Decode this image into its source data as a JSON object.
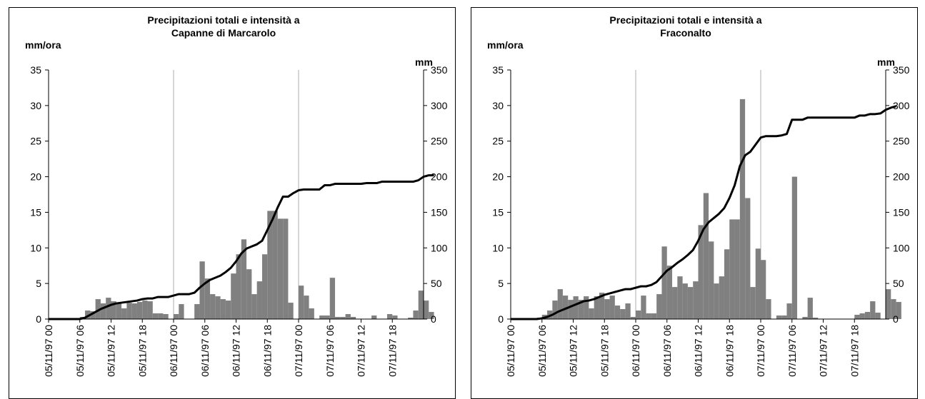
{
  "chart_data": [
    {
      "type": "bar",
      "title": [
        "Precipitazioni totali e intensità a",
        "Capanne di Marcarolo"
      ],
      "ylabel_left": "mm/ora",
      "ylabel_right": "mm",
      "ylim_left": [
        0,
        35
      ],
      "ylim_right": [
        0,
        350
      ],
      "yticks_left": [
        "0",
        "5",
        "10",
        "15",
        "20",
        "25",
        "30",
        "35"
      ],
      "yticks_right": [
        "0",
        "50",
        "100",
        "150",
        "200",
        "250",
        "300",
        "350"
      ],
      "x_tick_labels": [
        "05/11/97 00",
        "05/11/97 06",
        "05/11/97 12",
        "05/11/97 18",
        "06/11/97 00",
        "06/11/97 06",
        "06/11/97 12",
        "06/11/97 18",
        "07/11/97 00",
        "07/11/97 06",
        "07/11/97 12",
        "07/11/97 18"
      ],
      "x_interval_hours": 1,
      "hours": 72,
      "gridline_ticks": [
        24,
        48
      ],
      "series": [
        {
          "kind": "bar",
          "axis": "left",
          "color": "#808080",
          "values": [
            0,
            0,
            0,
            0,
            0,
            0,
            0.3,
            1.2,
            1.1,
            2.8,
            2.2,
            3.0,
            2.5,
            2.3,
            1.5,
            2.3,
            2.2,
            2.4,
            2.6,
            2.5,
            0.8,
            0.8,
            0.7,
            0,
            0.7,
            2.1,
            0,
            0,
            2.1,
            8.1,
            5.7,
            3.5,
            3.2,
            2.8,
            2.6,
            6.4,
            9.1,
            11.2,
            7.0,
            3.5,
            5.3,
            9.1,
            15.2,
            15.2,
            14.1,
            14.1,
            2.3,
            0,
            4.7,
            3.3,
            1.5,
            0,
            0.5,
            0.5,
            5.8,
            0.3,
            0.3,
            0.7,
            0.3,
            0,
            0,
            0,
            0.5,
            0,
            0,
            0.7,
            0.5,
            0,
            0,
            0.2,
            1.2,
            4.0,
            2.6,
            1.0
          ]
        },
        {
          "kind": "line",
          "axis": "right",
          "color": "#000000",
          "values": [
            0,
            0,
            0,
            0,
            0,
            0,
            0,
            2,
            6,
            10,
            14,
            17,
            20,
            22,
            23,
            24,
            25,
            26,
            28,
            29,
            29,
            31,
            31,
            31,
            33,
            35,
            35,
            35,
            37,
            44,
            50,
            55,
            58,
            61,
            66,
            72,
            81,
            92,
            99,
            102,
            105,
            110,
            125,
            140,
            157,
            172,
            172,
            177,
            181,
            182,
            182,
            182,
            182,
            188,
            188,
            190,
            190,
            190,
            190,
            190,
            190,
            191,
            191,
            191,
            193,
            193,
            193,
            193,
            193,
            193,
            193,
            195,
            200,
            202,
            202
          ]
        }
      ]
    },
    {
      "type": "bar",
      "title": [
        "Precipitazioni totali e intensità a",
        "Fraconalto"
      ],
      "ylabel_left": "mm/ora",
      "ylabel_right": "mm",
      "ylim_left": [
        0,
        35
      ],
      "ylim_right": [
        0,
        350
      ],
      "yticks_left": [
        "0",
        "5",
        "10",
        "15",
        "20",
        "25",
        "30",
        "35"
      ],
      "yticks_right": [
        "0",
        "50",
        "100",
        "150",
        "200",
        "250",
        "300",
        "350"
      ],
      "x_tick_labels": [
        "05/11/97 00",
        "05/11/97 06",
        "05/11/97 12",
        "05/11/97 18",
        "06/11/97 00",
        "06/11/97 06",
        "06/11/97 12",
        "06/11/97 18",
        "07/11/97 00",
        "07/11/97 06",
        "07/11/97 12",
        "07/11/97 18"
      ],
      "x_interval_hours": 1,
      "hours": 72,
      "gridline_ticks": [
        24,
        48
      ],
      "series": [
        {
          "kind": "bar",
          "axis": "left",
          "color": "#808080",
          "values": [
            0,
            0,
            0,
            0,
            0,
            0.2,
            0.6,
            1.2,
            2.6,
            4.2,
            3.3,
            2.7,
            3.2,
            2.7,
            3.2,
            1.5,
            3.2,
            3.7,
            2.8,
            3.3,
            1.9,
            1.4,
            2.2,
            0.3,
            1.2,
            3.3,
            0.8,
            0.8,
            3.5,
            10.2,
            7.5,
            4.5,
            6.0,
            5.0,
            4.5,
            5.3,
            13.2,
            17.7,
            10.9,
            5.0,
            6.0,
            9.8,
            14.0,
            14.0,
            30.9,
            17.0,
            4.5,
            9.9,
            8.3,
            2.8,
            0,
            0.5,
            0.5,
            2.2,
            20.0,
            0,
            0.3,
            3.0,
            0.2,
            0,
            0,
            0,
            0,
            0,
            0,
            0,
            0.6,
            0.8,
            1.0,
            2.5,
            0.9,
            0,
            4.2,
            2.8,
            2.4
          ]
        },
        {
          "kind": "line",
          "axis": "right",
          "color": "#000000",
          "values": [
            0,
            0,
            0,
            0,
            0,
            0,
            1,
            3,
            6,
            10,
            13,
            16,
            19,
            22,
            25,
            26,
            28,
            31,
            34,
            36,
            38,
            40,
            42,
            42,
            44,
            46,
            46,
            48,
            52,
            60,
            68,
            73,
            79,
            84,
            90,
            97,
            110,
            126,
            136,
            142,
            148,
            156,
            170,
            188,
            215,
            230,
            235,
            245,
            255,
            257,
            257,
            257,
            258,
            260,
            280,
            280,
            280,
            283,
            283,
            283,
            283,
            283,
            283,
            283,
            283,
            283,
            283,
            286,
            286,
            288,
            288,
            289,
            294,
            297,
            299
          ]
        }
      ]
    }
  ]
}
